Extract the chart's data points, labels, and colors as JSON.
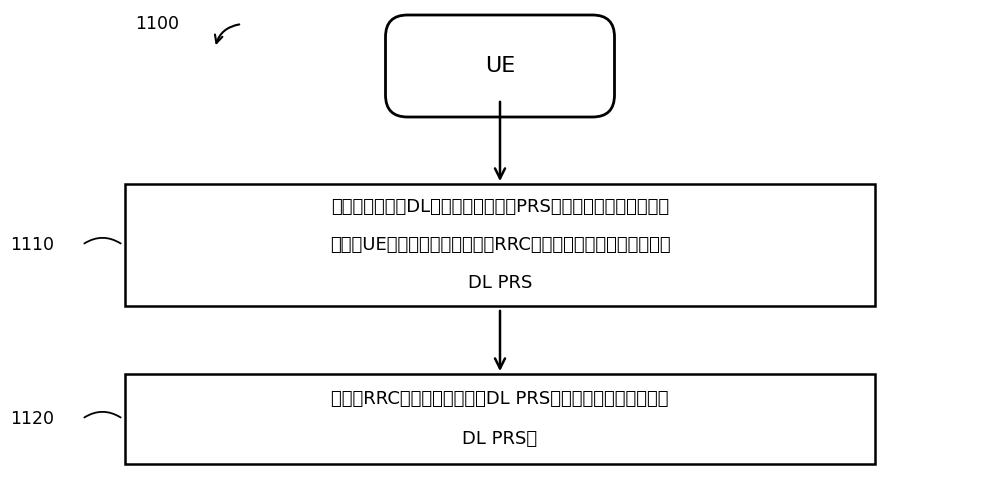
{
  "background_color": "#ffffff",
  "fig_width": 10.0,
  "fig_height": 4.86,
  "dpi": 100,
  "label_1100": "1100",
  "label_1110": "1110",
  "label_1120": "1120",
  "ue_label": "UE",
  "box1_line1": "确定下行链路（DL）定位参考信号（PRS）测量时段，用于测量和",
  "box1_line2": "处理当UE处于无线电资源控制（RRC）非活动状态时由基站发送的",
  "box1_line3": "DL PRS",
  "box2_line1": "当处于RRC非活动状态时，在DL PRS测量时段期间测量和处理",
  "box2_line2": "DL PRS。",
  "border_color": "#000000",
  "text_color": "#000000",
  "arrow_color": "#000000",
  "font_size_box": 13,
  "font_size_ue": 16,
  "font_size_label": 12.5
}
